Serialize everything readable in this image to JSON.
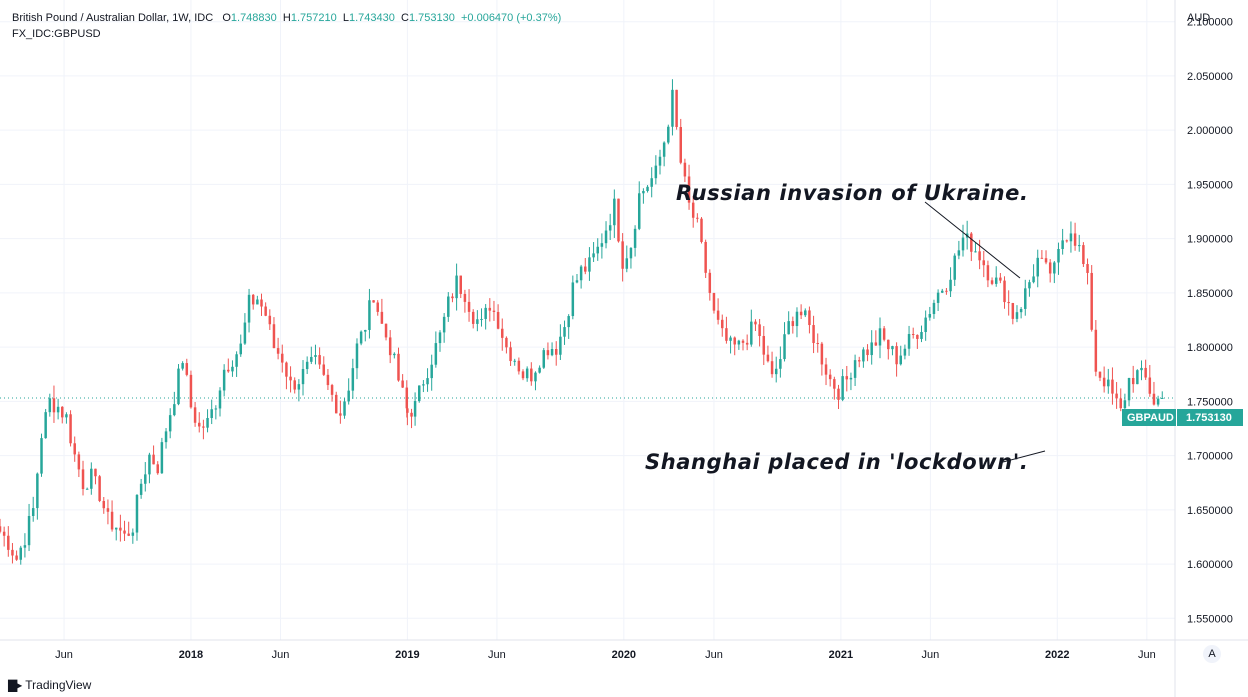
{
  "header": {
    "title": "British Pound / Australian Dollar, 1W, IDC",
    "o_label": "O",
    "o_value": "1.748830",
    "h_label": "H",
    "h_value": "1.757210",
    "l_label": "L",
    "l_value": "1.743430",
    "c_label": "C",
    "c_value": "1.753130",
    "change": "+0.006470 (+0.37%)",
    "compare_symbol": "FX_IDC:GBPUSD"
  },
  "currency_label": "AUD",
  "price_badge": {
    "symbol": "GBPAUD",
    "price": "1.753130",
    "color": "#26a69a"
  },
  "annotations": {
    "russia": "Russian invasion of Ukraine.",
    "shanghai": "Shanghai placed in 'lockdown'."
  },
  "branding": {
    "name": "TradingView"
  },
  "auto_scale_label": "A",
  "colors": {
    "up": "#26a69a",
    "down": "#ef5350",
    "grid": "#f0f3fa"
  },
  "chart_data": {
    "type": "candlestick",
    "title": "British Pound / Australian Dollar, 1W, IDC",
    "interval": "1W",
    "ylim": [
      1.53,
      2.12
    ],
    "y_ticks": [
      1.55,
      1.6,
      1.65,
      1.7,
      1.75,
      1.8,
      1.85,
      1.9,
      1.95,
      2.0,
      2.05,
      2.1
    ],
    "y_tick_labels": [
      "1.550000",
      "1.600000",
      "1.650000",
      "1.700000",
      "1.750000",
      "1.800000",
      "1.850000",
      "1.900000",
      "1.950000",
      "2.000000",
      "2.050000",
      "2.100000"
    ],
    "x_ticks": [
      {
        "label": "Jun",
        "date": "2017-06-01"
      },
      {
        "label": "2018",
        "date": "2018-01-01"
      },
      {
        "label": "Jun",
        "date": "2018-06-01"
      },
      {
        "label": "2019",
        "date": "2019-01-01"
      },
      {
        "label": "Jun",
        "date": "2019-06-01"
      },
      {
        "label": "2020",
        "date": "2020-01-01"
      },
      {
        "label": "Jun",
        "date": "2020-06-01"
      },
      {
        "label": "2021",
        "date": "2021-01-01"
      },
      {
        "label": "Jun",
        "date": "2021-06-01"
      },
      {
        "label": "2022",
        "date": "2022-01-01"
      },
      {
        "label": "Jun",
        "date": "2022-06-01"
      }
    ],
    "x_range": [
      "2017-02-13",
      "2022-07-05"
    ],
    "grid": true,
    "last_price": 1.75313,
    "anchors": [
      [
        "2017-02-13",
        1.63
      ],
      [
        "2017-02-27",
        1.62
      ],
      [
        "2017-03-13",
        1.605
      ],
      [
        "2017-03-27",
        1.625
      ],
      [
        "2017-04-10",
        1.65
      ],
      [
        "2017-04-24",
        1.72
      ],
      [
        "2017-05-08",
        1.75
      ],
      [
        "2017-05-22",
        1.745
      ],
      [
        "2017-06-05",
        1.735
      ],
      [
        "2017-06-19",
        1.7
      ],
      [
        "2017-07-03",
        1.675
      ],
      [
        "2017-07-17",
        1.68
      ],
      [
        "2017-07-31",
        1.665
      ],
      [
        "2017-08-14",
        1.64
      ],
      [
        "2017-08-28",
        1.635
      ],
      [
        "2017-09-11",
        1.625
      ],
      [
        "2017-09-25",
        1.635
      ],
      [
        "2017-10-09",
        1.675
      ],
      [
        "2017-10-23",
        1.7
      ],
      [
        "2017-11-06",
        1.69
      ],
      [
        "2017-11-20",
        1.725
      ],
      [
        "2017-12-04",
        1.755
      ],
      [
        "2017-12-18",
        1.79
      ],
      [
        "2018-01-01",
        1.745
      ],
      [
        "2018-01-15",
        1.725
      ],
      [
        "2018-01-29",
        1.73
      ],
      [
        "2018-02-12",
        1.75
      ],
      [
        "2018-02-26",
        1.78
      ],
      [
        "2018-03-12",
        1.79
      ],
      [
        "2018-03-26",
        1.8
      ],
      [
        "2018-04-09",
        1.84
      ],
      [
        "2018-04-23",
        1.845
      ],
      [
        "2018-05-07",
        1.83
      ],
      [
        "2018-05-21",
        1.8
      ],
      [
        "2018-06-04",
        1.79
      ],
      [
        "2018-06-18",
        1.765
      ],
      [
        "2018-07-02",
        1.77
      ],
      [
        "2018-07-16",
        1.78
      ],
      [
        "2018-07-30",
        1.785
      ],
      [
        "2018-08-13",
        1.77
      ],
      [
        "2018-08-27",
        1.755
      ],
      [
        "2018-09-10",
        1.74
      ],
      [
        "2018-09-24",
        1.765
      ],
      [
        "2018-10-08",
        1.8
      ],
      [
        "2018-10-22",
        1.82
      ],
      [
        "2018-11-05",
        1.85
      ],
      [
        "2018-11-19",
        1.82
      ],
      [
        "2018-12-03",
        1.8
      ],
      [
        "2018-12-17",
        1.77
      ],
      [
        "2019-01-01",
        1.74
      ],
      [
        "2019-01-14",
        1.745
      ],
      [
        "2019-01-28",
        1.77
      ],
      [
        "2019-02-11",
        1.79
      ],
      [
        "2019-02-25",
        1.81
      ],
      [
        "2019-03-11",
        1.84
      ],
      [
        "2019-03-25",
        1.86
      ],
      [
        "2019-04-08",
        1.85
      ],
      [
        "2019-04-22",
        1.83
      ],
      [
        "2019-05-06",
        1.82
      ],
      [
        "2019-05-20",
        1.84
      ],
      [
        "2019-06-03",
        1.825
      ],
      [
        "2019-06-17",
        1.8
      ],
      [
        "2019-07-01",
        1.79
      ],
      [
        "2019-07-15",
        1.775
      ],
      [
        "2019-07-29",
        1.775
      ],
      [
        "2019-08-12",
        1.79
      ],
      [
        "2019-08-26",
        1.8
      ],
      [
        "2019-09-09",
        1.8
      ],
      [
        "2019-09-23",
        1.82
      ],
      [
        "2019-10-07",
        1.855
      ],
      [
        "2019-10-21",
        1.87
      ],
      [
        "2019-11-04",
        1.875
      ],
      [
        "2019-11-18",
        1.89
      ],
      [
        "2019-12-02",
        1.91
      ],
      [
        "2019-12-16",
        1.93
      ],
      [
        "2019-12-30",
        1.88
      ],
      [
        "2020-01-13",
        1.895
      ],
      [
        "2020-01-27",
        1.94
      ],
      [
        "2020-02-10",
        1.95
      ],
      [
        "2020-02-24",
        1.96
      ],
      [
        "2020-03-09",
        1.99
      ],
      [
        "2020-03-23",
        2.03
      ],
      [
        "2020-04-06",
        1.97
      ],
      [
        "2020-04-20",
        1.93
      ],
      [
        "2020-05-04",
        1.91
      ],
      [
        "2020-05-18",
        1.87
      ],
      [
        "2020-06-01",
        1.83
      ],
      [
        "2020-06-15",
        1.81
      ],
      [
        "2020-06-29",
        1.8
      ],
      [
        "2020-07-13",
        1.8
      ],
      [
        "2020-07-27",
        1.81
      ],
      [
        "2020-08-10",
        1.82
      ],
      [
        "2020-08-24",
        1.795
      ],
      [
        "2020-09-07",
        1.77
      ],
      [
        "2020-09-21",
        1.79
      ],
      [
        "2020-10-05",
        1.82
      ],
      [
        "2020-10-19",
        1.835
      ],
      [
        "2020-11-02",
        1.825
      ],
      [
        "2020-11-16",
        1.81
      ],
      [
        "2020-11-30",
        1.79
      ],
      [
        "2020-12-14",
        1.77
      ],
      [
        "2020-12-28",
        1.76
      ],
      [
        "2021-01-11",
        1.77
      ],
      [
        "2021-01-25",
        1.79
      ],
      [
        "2021-02-08",
        1.795
      ],
      [
        "2021-02-22",
        1.8
      ],
      [
        "2021-03-08",
        1.81
      ],
      [
        "2021-03-22",
        1.8
      ],
      [
        "2021-04-05",
        1.79
      ],
      [
        "2021-04-19",
        1.8
      ],
      [
        "2021-05-03",
        1.81
      ],
      [
        "2021-05-17",
        1.82
      ],
      [
        "2021-05-31",
        1.835
      ],
      [
        "2021-06-14",
        1.85
      ],
      [
        "2021-06-28",
        1.86
      ],
      [
        "2021-07-12",
        1.88
      ],
      [
        "2021-07-26",
        1.9
      ],
      [
        "2021-08-09",
        1.895
      ],
      [
        "2021-08-23",
        1.885
      ],
      [
        "2021-09-06",
        1.87
      ],
      [
        "2021-09-20",
        1.86
      ],
      [
        "2021-10-04",
        1.85
      ],
      [
        "2021-10-18",
        1.83
      ],
      [
        "2021-11-01",
        1.84
      ],
      [
        "2021-11-15",
        1.86
      ],
      [
        "2021-11-29",
        1.88
      ],
      [
        "2021-12-13",
        1.87
      ],
      [
        "2021-12-27",
        1.87
      ],
      [
        "2022-01-10",
        1.9
      ],
      [
        "2022-01-24",
        1.91
      ],
      [
        "2022-02-07",
        1.89
      ],
      [
        "2022-02-21",
        1.86
      ],
      [
        "2022-03-07",
        1.78
      ],
      [
        "2022-03-21",
        1.77
      ],
      [
        "2022-04-04",
        1.755
      ],
      [
        "2022-04-18",
        1.74
      ],
      [
        "2022-05-02",
        1.77
      ],
      [
        "2022-05-16",
        1.775
      ],
      [
        "2022-05-30",
        1.77
      ],
      [
        "2022-06-13",
        1.75
      ],
      [
        "2022-06-27",
        1.753
      ]
    ]
  }
}
